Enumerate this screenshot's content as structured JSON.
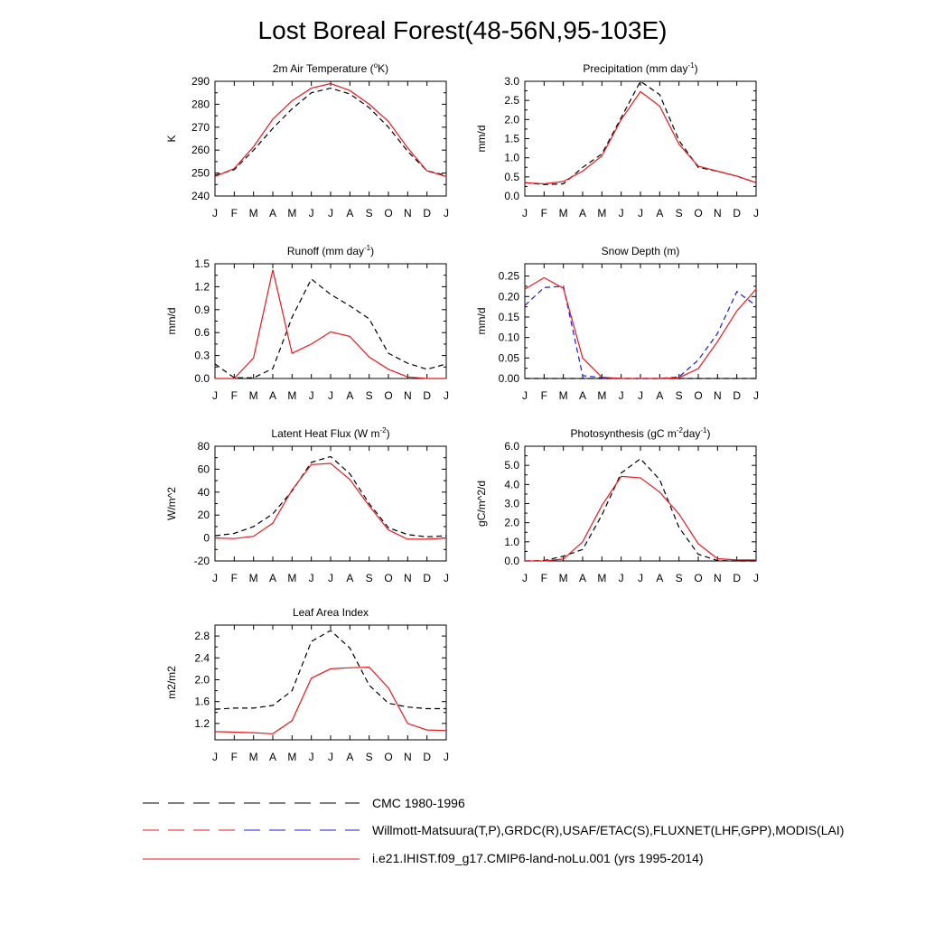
{
  "title": "Lost Boreal Forest(48-56N,95-103E)",
  "months": [
    "J",
    "F",
    "M",
    "A",
    "M",
    "J",
    "J",
    "A",
    "S",
    "O",
    "N",
    "D",
    "J"
  ],
  "colors": {
    "model": "#e8191f",
    "obs_black": "#000000",
    "obs_blue": "#1818e0"
  },
  "legend": [
    {
      "label": "CMC 1980-1996",
      "style": "dash-black"
    },
    {
      "label": "Willmott-Matsuura(T,P),GRDC(R),USAF/ETAC(S),FLUXNET(LHF,GPP),MODIS(LAI)",
      "style": "dash-black-blue"
    },
    {
      "label": "i.e21.IHIST.f09_g17.CMIP6-land-noLu.001 (yrs 1995-2014)",
      "style": "solid-red"
    }
  ],
  "chart_data": [
    {
      "type": "line",
      "title": "2m Air Temperature (°K)",
      "title_parts": [
        "2m Air Temperature (",
        "o",
        "K)"
      ],
      "ylabel": "K",
      "ylim": [
        240,
        290
      ],
      "yticks": [
        "240",
        "250",
        "260",
        "270",
        "280",
        "290"
      ],
      "series": [
        {
          "style": "obs_black",
          "values": [
            249,
            251.5,
            260,
            269.5,
            278,
            285,
            287,
            284.5,
            278.5,
            270,
            259.5,
            251,
            249
          ]
        },
        {
          "style": "model",
          "values": [
            248.5,
            252,
            261.5,
            273.5,
            281.5,
            287,
            289,
            286,
            280,
            272.5,
            261,
            251,
            248.5
          ]
        }
      ]
    },
    {
      "type": "line",
      "title": "Precipitation (mm day-1)",
      "title_parts": [
        "Precipitation (mm day",
        "-1",
        ")"
      ],
      "ylabel": "mm/d",
      "ylim": [
        0,
        3.0
      ],
      "yticks": [
        "0.0",
        "0.5",
        "1.0",
        "1.5",
        "2.0",
        "2.5",
        "3.0"
      ],
      "series": [
        {
          "style": "obs_black",
          "values": [
            0.35,
            0.3,
            0.32,
            0.75,
            1.1,
            2.05,
            3.0,
            2.65,
            1.45,
            0.75,
            0.65,
            0.52,
            0.35
          ]
        },
        {
          "style": "model",
          "values": [
            0.35,
            0.32,
            0.38,
            0.65,
            1.05,
            2.0,
            2.73,
            2.35,
            1.35,
            0.78,
            0.65,
            0.52,
            0.35
          ]
        }
      ]
    },
    {
      "type": "line",
      "title": "Runoff (mm day-1)",
      "title_parts": [
        "Runoff (mm day",
        "-1",
        ")"
      ],
      "ylabel": "mm/d",
      "ylim": [
        0,
        1.5
      ],
      "yticks": [
        "0.0",
        "0.3",
        "0.6",
        "0.9",
        "1.2",
        "1.5"
      ],
      "series": [
        {
          "style": "obs_black",
          "values": [
            0.19,
            0.01,
            0.01,
            0.13,
            0.8,
            1.3,
            1.1,
            0.95,
            0.78,
            0.33,
            0.2,
            0.12,
            0.19
          ]
        },
        {
          "style": "model",
          "values": [
            0.0,
            0.0,
            0.27,
            1.42,
            0.33,
            0.45,
            0.61,
            0.55,
            0.28,
            0.12,
            0.02,
            0.0,
            0.0
          ]
        }
      ]
    },
    {
      "type": "line",
      "title": "Snow Depth (m)",
      "title_parts": [
        "Snow Depth (m)"
      ],
      "ylabel": "mm/d",
      "ylim": [
        0,
        0.28
      ],
      "yticks": [
        "0.00",
        "0.05",
        "0.10",
        "0.15",
        "0.20",
        "0.25"
      ],
      "yticks_values": [
        0,
        0.05,
        0.1,
        0.15,
        0.2,
        0.25
      ],
      "series": [
        {
          "style": "obs_black",
          "values": [
            0,
            0,
            0,
            0,
            0,
            0,
            0,
            0,
            0,
            0,
            0,
            0,
            0
          ]
        },
        {
          "style": "obs_blue",
          "values": [
            0.178,
            0.222,
            0.225,
            0.007,
            0.002,
            0.0,
            0.0,
            0.0,
            0.004,
            0.045,
            0.11,
            0.212,
            0.178
          ]
        },
        {
          "style": "model",
          "values": [
            0.218,
            0.246,
            0.22,
            0.05,
            0.003,
            0.0,
            0.0,
            0.0,
            0.002,
            0.024,
            0.09,
            0.165,
            0.218
          ]
        }
      ]
    },
    {
      "type": "line",
      "title": "Latent Heat Flux (W m-2)",
      "title_parts": [
        "Latent Heat Flux (W m",
        "-2",
        ")"
      ],
      "ylabel": "W/m^2",
      "ylim": [
        -20,
        80
      ],
      "yticks": [
        "-20",
        "0",
        "20",
        "40",
        "60",
        "80"
      ],
      "series": [
        {
          "style": "obs_black",
          "values": [
            2,
            4,
            10,
            21,
            41,
            66,
            71,
            56,
            30,
            9,
            3,
            1,
            2
          ]
        },
        {
          "style": "model",
          "values": [
            0,
            -0.5,
            1.5,
            13,
            42,
            64,
            65,
            51,
            28,
            7,
            -1,
            -1,
            0
          ]
        }
      ]
    },
    {
      "type": "line",
      "title": "Photosynthesis (gC m-2day-1)",
      "title_parts": [
        "Photosynthesis (gC m",
        "-2",
        "day",
        "-1",
        ")"
      ],
      "ylabel": "gC/m^2/d",
      "ylim": [
        0,
        6.0
      ],
      "yticks": [
        "0.0",
        "1.0",
        "2.0",
        "3.0",
        "4.0",
        "5.0",
        "6.0"
      ],
      "series": [
        {
          "style": "obs_black",
          "values": [
            0.0,
            0.02,
            0.25,
            0.6,
            2.4,
            4.6,
            5.35,
            4.25,
            1.75,
            0.35,
            0.02,
            0.0,
            0.0
          ]
        },
        {
          "style": "model",
          "values": [
            0.0,
            0.0,
            0.1,
            1.0,
            2.9,
            4.42,
            4.35,
            3.6,
            2.45,
            0.9,
            0.12,
            0.05,
            0.05
          ]
        }
      ]
    },
    {
      "type": "line",
      "title": "Leaf Area Index",
      "title_parts": [
        "Leaf Area Index"
      ],
      "ylabel": "m2/m2",
      "ylim": [
        0.9,
        3.0
      ],
      "yticks": [
        "1.2",
        "1.6",
        "2.0",
        "2.4",
        "2.8"
      ],
      "yticks_values": [
        1.2,
        1.6,
        2.0,
        2.4,
        2.8
      ],
      "series": [
        {
          "style": "obs_black",
          "values": [
            1.46,
            1.48,
            1.48,
            1.53,
            1.8,
            2.7,
            2.9,
            2.58,
            1.9,
            1.57,
            1.5,
            1.47,
            1.47
          ]
        },
        {
          "style": "model",
          "values": [
            1.05,
            1.04,
            1.03,
            1.01,
            1.25,
            2.03,
            2.2,
            2.22,
            2.23,
            1.85,
            1.2,
            1.08,
            1.07
          ]
        }
      ]
    }
  ]
}
